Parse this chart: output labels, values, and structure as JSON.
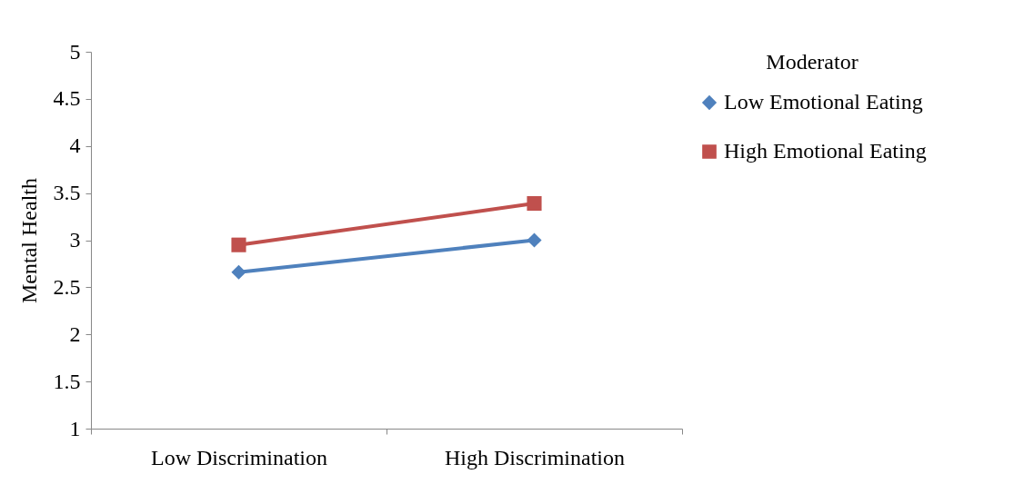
{
  "chart_data": {
    "type": "line",
    "ylabel": "Mental Health",
    "legend_title": "Moderator",
    "categories": [
      "Low Discrimination",
      "High Discrimination"
    ],
    "series": [
      {
        "name": "Low Emotional Eating",
        "color": "#4f81bd",
        "marker": "diamond",
        "values": [
          2.66,
          3.0
        ]
      },
      {
        "name": "High Emotional Eating",
        "color": "#c0504d",
        "marker": "square",
        "values": [
          2.95,
          3.39
        ]
      }
    ],
    "ylim": [
      1,
      5
    ],
    "yticks": [
      1,
      1.5,
      2,
      2.5,
      3,
      3.5,
      4,
      4.5,
      5
    ],
    "grid": false,
    "legend": "right"
  }
}
